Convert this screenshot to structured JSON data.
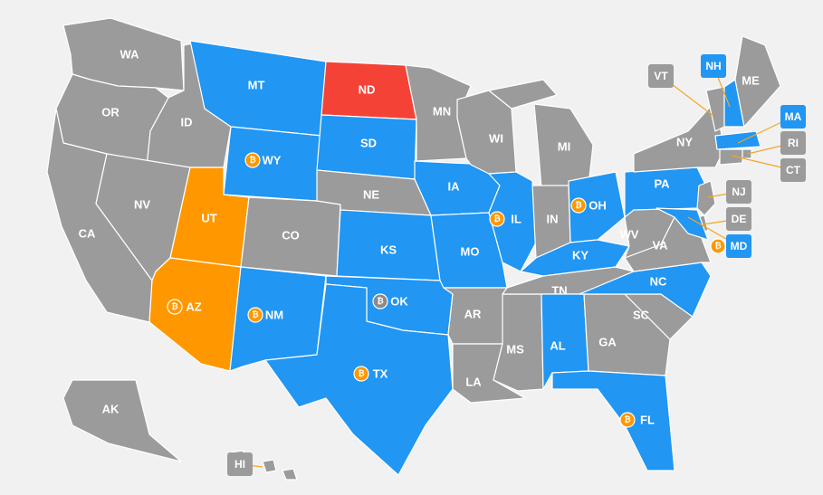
{
  "colors": {
    "gray": "#9b9b9b",
    "blue": "#2196f3",
    "orange": "#ff9800",
    "red": "#f44336",
    "icon_gray": "#8a8a8a",
    "background": "#f1f1f1"
  },
  "states": [
    {
      "abbr": "WA",
      "status": "gray"
    },
    {
      "abbr": "OR",
      "status": "gray"
    },
    {
      "abbr": "CA",
      "status": "gray"
    },
    {
      "abbr": "ID",
      "status": "gray"
    },
    {
      "abbr": "NV",
      "status": "gray"
    },
    {
      "abbr": "MT",
      "status": "blue"
    },
    {
      "abbr": "WY",
      "status": "blue",
      "icon": "bitcoin-icon"
    },
    {
      "abbr": "UT",
      "status": "orange"
    },
    {
      "abbr": "AZ",
      "status": "orange",
      "icon": "bitcoin-icon"
    },
    {
      "abbr": "CO",
      "status": "gray"
    },
    {
      "abbr": "NM",
      "status": "blue",
      "icon": "bitcoin-icon"
    },
    {
      "abbr": "ND",
      "status": "red"
    },
    {
      "abbr": "SD",
      "status": "blue"
    },
    {
      "abbr": "NE",
      "status": "gray"
    },
    {
      "abbr": "KS",
      "status": "blue"
    },
    {
      "abbr": "OK",
      "status": "blue",
      "icon": "bitcoin-icon-gray"
    },
    {
      "abbr": "TX",
      "status": "blue",
      "icon": "bitcoin-icon"
    },
    {
      "abbr": "MN",
      "status": "gray"
    },
    {
      "abbr": "IA",
      "status": "blue"
    },
    {
      "abbr": "MO",
      "status": "blue"
    },
    {
      "abbr": "AR",
      "status": "gray"
    },
    {
      "abbr": "LA",
      "status": "gray"
    },
    {
      "abbr": "WI",
      "status": "gray"
    },
    {
      "abbr": "IL",
      "status": "blue",
      "icon": "bitcoin-icon"
    },
    {
      "abbr": "MS",
      "status": "gray"
    },
    {
      "abbr": "MI",
      "status": "gray"
    },
    {
      "abbr": "IN",
      "status": "gray"
    },
    {
      "abbr": "OH",
      "status": "blue",
      "icon": "bitcoin-icon"
    },
    {
      "abbr": "KY",
      "status": "blue"
    },
    {
      "abbr": "TN",
      "status": "gray"
    },
    {
      "abbr": "AL",
      "status": "blue"
    },
    {
      "abbr": "GA",
      "status": "gray"
    },
    {
      "abbr": "FL",
      "status": "blue",
      "icon": "bitcoin-icon"
    },
    {
      "abbr": "SC",
      "status": "gray"
    },
    {
      "abbr": "NC",
      "status": "blue"
    },
    {
      "abbr": "VA",
      "status": "gray"
    },
    {
      "abbr": "WV",
      "status": "gray"
    },
    {
      "abbr": "PA",
      "status": "blue"
    },
    {
      "abbr": "NY",
      "status": "gray"
    },
    {
      "abbr": "VT",
      "status": "gray"
    },
    {
      "abbr": "NH",
      "status": "blue"
    },
    {
      "abbr": "ME",
      "status": "gray"
    },
    {
      "abbr": "MA",
      "status": "blue"
    },
    {
      "abbr": "RI",
      "status": "gray"
    },
    {
      "abbr": "CT",
      "status": "gray"
    },
    {
      "abbr": "NJ",
      "status": "gray"
    },
    {
      "abbr": "DE",
      "status": "gray"
    },
    {
      "abbr": "MD",
      "status": "blue",
      "icon": "bitcoin-icon"
    },
    {
      "abbr": "AK",
      "status": "gray"
    },
    {
      "abbr": "HI",
      "status": "gray"
    }
  ]
}
